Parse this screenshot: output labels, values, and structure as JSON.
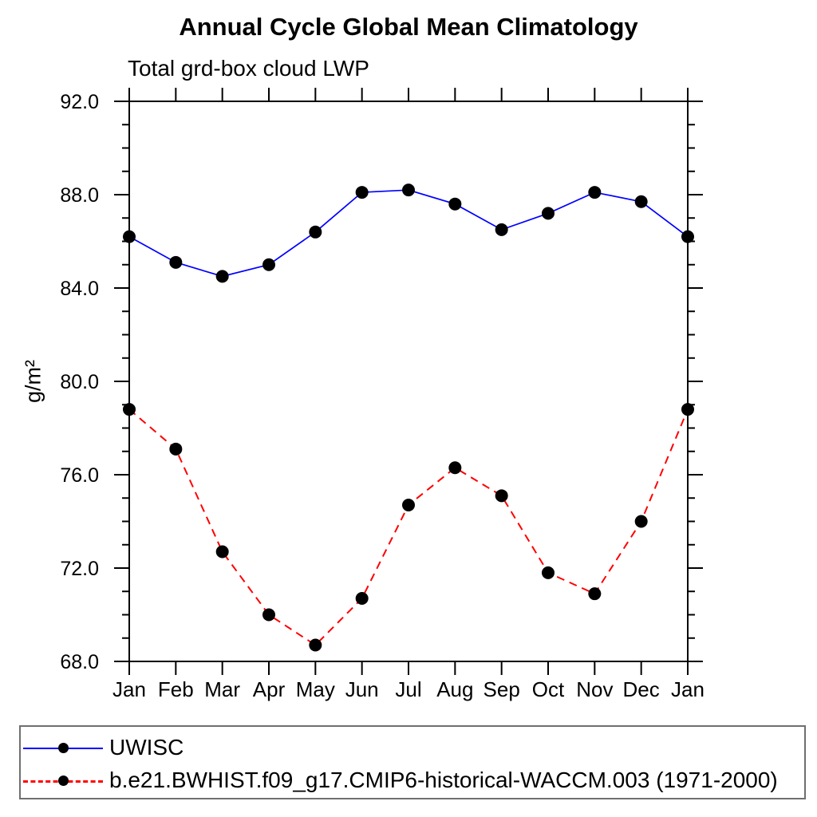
{
  "header": {
    "title": "Annual Cycle Global Mean Climatology",
    "subtitle": "Total grd-box cloud LWP"
  },
  "legend": {
    "items": [
      {
        "label": "UWISC",
        "color": "#0000ff",
        "line_style": "solid",
        "marker_color": "#000000"
      },
      {
        "label": "b.e21.BWHIST.f09_g17.CMIP6-historical-WACCM.003 (1971-2000)",
        "color": "#ff0000",
        "line_style": "dashed",
        "marker_color": "#000000"
      }
    ]
  },
  "chart_data": {
    "type": "line",
    "title": "Annual Cycle Global Mean Climatology",
    "subtitle": "Total grd-box cloud LWP",
    "xlabel": "",
    "ylabel": "g/m²",
    "categories": [
      "Jan",
      "Feb",
      "Mar",
      "Apr",
      "May",
      "Jun",
      "Jul",
      "Aug",
      "Sep",
      "Oct",
      "Nov",
      "Dec",
      "Jan"
    ],
    "ylim": [
      68.0,
      92.0
    ],
    "y_major_tick_step": 4,
    "y_minor_tick_step": 1,
    "y_tick_labels": [
      "68.0",
      "72.0",
      "76.0",
      "80.0",
      "84.0",
      "88.0",
      "92.0"
    ],
    "grid": false,
    "frame": "box-with-outward-ticks",
    "legend_position": "bottom",
    "axis_color": "#000000",
    "series": [
      {
        "name": "UWISC",
        "color": "#0000ff",
        "line_style": "solid",
        "marker": "filled-circle",
        "marker_color": "#000000",
        "values": [
          86.2,
          85.1,
          84.5,
          85.0,
          86.4,
          88.1,
          88.2,
          87.6,
          86.5,
          87.2,
          88.1,
          87.7,
          86.2
        ]
      },
      {
        "name": "b.e21.BWHIST.f09_g17.CMIP6-historical-WACCM.003 (1971-2000)",
        "color": "#ff0000",
        "line_style": "dashed",
        "marker": "filled-circle",
        "marker_color": "#000000",
        "values": [
          78.8,
          77.1,
          72.7,
          70.0,
          68.7,
          70.7,
          74.7,
          76.3,
          75.1,
          71.8,
          70.9,
          74.0,
          78.8
        ]
      }
    ]
  }
}
